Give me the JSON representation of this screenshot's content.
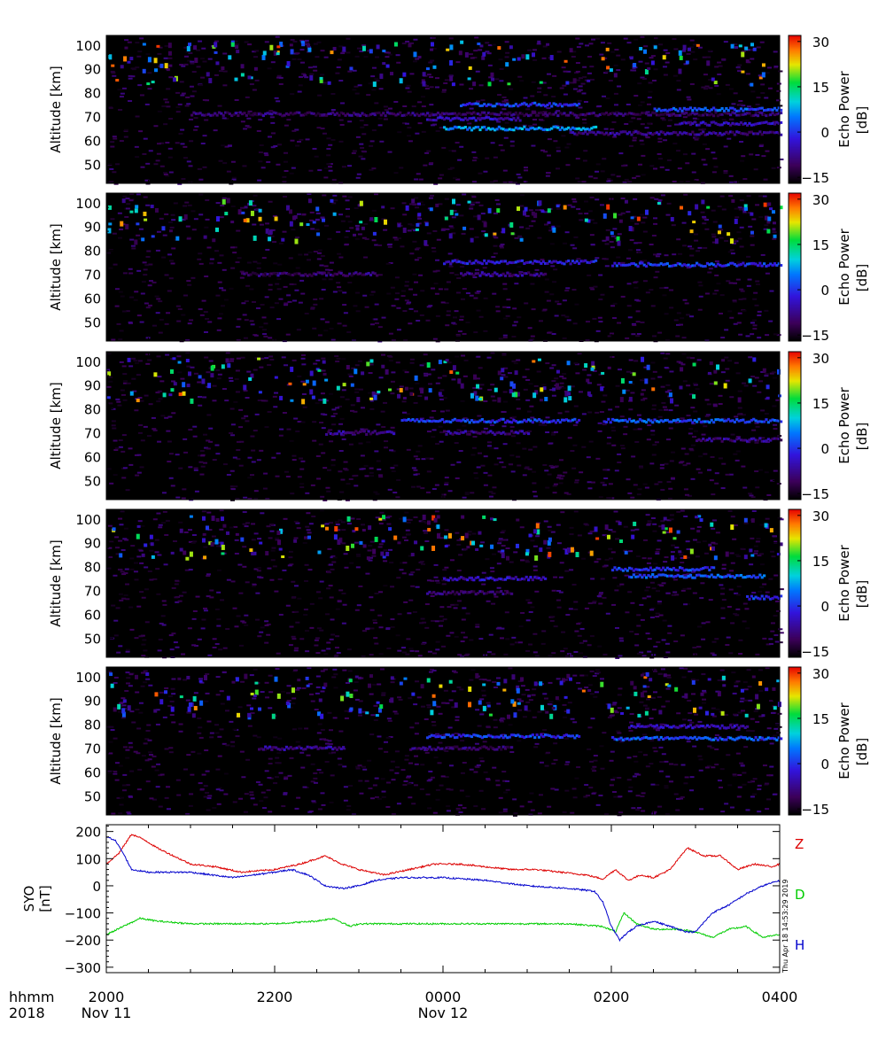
{
  "figure": {
    "x_label_line1": "hhmm",
    "x_label_line2": "2018",
    "stamp": "Thu Apr 18 14:53:29 2019"
  },
  "time_axis": {
    "range_hours": [
      20,
      28
    ],
    "ticks": [
      {
        "t": 20,
        "time": "2000",
        "date": "Nov 11"
      },
      {
        "t": 22,
        "time": "2200",
        "date": ""
      },
      {
        "t": 24,
        "time": "0000",
        "date": "Nov 12"
      },
      {
        "t": 26,
        "time": "0200",
        "date": ""
      },
      {
        "t": 28,
        "time": "0400",
        "date": ""
      }
    ],
    "minor_step_hours": 0.5
  },
  "chart_data": [
    {
      "type": "heatmap",
      "panel": 1,
      "ylabel": "Altitude [km]",
      "ylim": [
        42,
        104
      ],
      "yticks": [
        50,
        60,
        70,
        80,
        90,
        100
      ],
      "colorbar": {
        "label_line1": "Echo Power",
        "label_line2": "[dB]",
        "range": [
          -17,
          32
        ],
        "ticks": [
          -15,
          0,
          15,
          30
        ]
      },
      "echo_layers": [
        {
          "t": [
            21.0,
            28.0
          ],
          "alt": 71,
          "db": -10
        },
        {
          "t": [
            23.8,
            24.9
          ],
          "alt": 69,
          "db": -5
        },
        {
          "t": [
            24.0,
            25.8
          ],
          "alt": 65,
          "db": 6
        },
        {
          "t": [
            24.2,
            25.6
          ],
          "alt": 75,
          "db": 0
        },
        {
          "t": [
            26.5,
            28.0
          ],
          "alt": 73,
          "db": 2
        },
        {
          "t": [
            26.8,
            28.0
          ],
          "alt": 67,
          "db": -5
        },
        {
          "t": [
            25.5,
            28.0
          ],
          "alt": 63,
          "db": -8
        }
      ]
    },
    {
      "type": "heatmap",
      "panel": 2,
      "ylabel": "Altitude [km]",
      "ylim": [
        42,
        104
      ],
      "yticks": [
        50,
        60,
        70,
        80,
        90,
        100
      ],
      "colorbar": {
        "label_line1": "Echo Power",
        "label_line2": "[dB]",
        "range": [
          -17,
          32
        ],
        "ticks": [
          -15,
          0,
          15,
          30
        ]
      },
      "echo_layers": [
        {
          "t": [
            24.0,
            25.8
          ],
          "alt": 75,
          "db": -3
        },
        {
          "t": [
            24.2,
            25.2
          ],
          "alt": 70,
          "db": -8
        },
        {
          "t": [
            26.0,
            28.0
          ],
          "alt": 74,
          "db": 0
        },
        {
          "t": [
            21.6,
            23.2
          ],
          "alt": 70,
          "db": -10
        }
      ]
    },
    {
      "type": "heatmap",
      "panel": 3,
      "ylabel": "Altitude [km]",
      "ylim": [
        42,
        104
      ],
      "yticks": [
        50,
        60,
        70,
        80,
        90,
        100
      ],
      "colorbar": {
        "label_line1": "Echo Power",
        "label_line2": "[dB]",
        "range": [
          -17,
          32
        ],
        "ticks": [
          -15,
          0,
          15,
          30
        ]
      },
      "echo_layers": [
        {
          "t": [
            23.5,
            25.6
          ],
          "alt": 75,
          "db": 0
        },
        {
          "t": [
            22.6,
            23.4
          ],
          "alt": 70,
          "db": -8
        },
        {
          "t": [
            24.0,
            25.0
          ],
          "alt": 70,
          "db": -8
        },
        {
          "t": [
            25.9,
            28.0
          ],
          "alt": 75,
          "db": 2
        },
        {
          "t": [
            27.0,
            28.0
          ],
          "alt": 67,
          "db": -8
        }
      ]
    },
    {
      "type": "heatmap",
      "panel": 4,
      "ylabel": "Altitude [km]",
      "ylim": [
        42,
        104
      ],
      "yticks": [
        50,
        60,
        70,
        80,
        90,
        100
      ],
      "colorbar": {
        "label_line1": "Echo Power",
        "label_line2": "[dB]",
        "range": [
          -17,
          32
        ],
        "ticks": [
          -15,
          0,
          15,
          30
        ]
      },
      "echo_layers": [
        {
          "t": [
            24.0,
            25.2
          ],
          "alt": 75,
          "db": -5
        },
        {
          "t": [
            26.0,
            27.2
          ],
          "alt": 79,
          "db": 0
        },
        {
          "t": [
            26.2,
            27.8
          ],
          "alt": 76,
          "db": 2
        },
        {
          "t": [
            27.6,
            28.0
          ],
          "alt": 67,
          "db": 0
        },
        {
          "t": [
            23.8,
            24.8
          ],
          "alt": 69,
          "db": -10
        }
      ]
    },
    {
      "type": "heatmap",
      "panel": 5,
      "ylabel": "Altitude [km]",
      "ylim": [
        42,
        104
      ],
      "yticks": [
        50,
        60,
        70,
        80,
        90,
        100
      ],
      "colorbar": {
        "label_line1": "Echo Power",
        "label_line2": "[dB]",
        "range": [
          -17,
          32
        ],
        "ticks": [
          -15,
          0,
          15,
          30
        ]
      },
      "echo_layers": [
        {
          "t": [
            23.8,
            25.6
          ],
          "alt": 75,
          "db": 0
        },
        {
          "t": [
            21.8,
            22.8
          ],
          "alt": 70,
          "db": -8
        },
        {
          "t": [
            23.6,
            24.8
          ],
          "alt": 70,
          "db": -10
        },
        {
          "t": [
            26.0,
            28.0
          ],
          "alt": 74,
          "db": 2
        },
        {
          "t": [
            26.2,
            27.6
          ],
          "alt": 79,
          "db": -5
        }
      ]
    },
    {
      "type": "line",
      "panel": 6,
      "ylabel_line1": "SYO",
      "ylabel_line2": "[nT]",
      "ylim": [
        -320,
        225
      ],
      "yticks": [
        -300,
        -200,
        -100,
        0,
        100,
        200
      ],
      "series": [
        {
          "name": "Z",
          "color": "#dd0000",
          "t": [
            20.0,
            20.15,
            20.3,
            20.45,
            20.6,
            20.8,
            21.0,
            21.3,
            21.6,
            22.0,
            22.3,
            22.6,
            22.8,
            23.0,
            23.3,
            23.6,
            23.9,
            24.2,
            24.5,
            24.8,
            25.1,
            25.4,
            25.7,
            25.9,
            26.05,
            26.2,
            26.35,
            26.5,
            26.7,
            26.9,
            27.1,
            27.3,
            27.5,
            27.7,
            27.9,
            28.0
          ],
          "v": [
            80,
            120,
            190,
            170,
            140,
            110,
            80,
            70,
            50,
            60,
            80,
            110,
            80,
            60,
            40,
            60,
            80,
            80,
            70,
            60,
            60,
            50,
            40,
            25,
            60,
            20,
            40,
            30,
            60,
            140,
            110,
            110,
            60,
            80,
            70,
            80
          ]
        },
        {
          "name": "D",
          "color": "#00cc00",
          "t": [
            20.0,
            20.2,
            20.4,
            20.6,
            21.0,
            21.5,
            22.0,
            22.5,
            22.7,
            22.9,
            23.0,
            23.5,
            24.0,
            24.5,
            25.0,
            25.5,
            25.9,
            26.05,
            26.15,
            26.3,
            26.5,
            26.8,
            27.0,
            27.2,
            27.4,
            27.6,
            27.8,
            28.0
          ],
          "v": [
            -180,
            -150,
            -120,
            -130,
            -140,
            -140,
            -140,
            -130,
            -120,
            -150,
            -140,
            -140,
            -140,
            -140,
            -140,
            -140,
            -150,
            -170,
            -100,
            -140,
            -160,
            -160,
            -170,
            -190,
            -160,
            -150,
            -190,
            -180
          ]
        },
        {
          "name": "H",
          "color": "#0000cc",
          "t": [
            20.0,
            20.1,
            20.2,
            20.3,
            20.5,
            21.0,
            21.5,
            22.0,
            22.2,
            22.4,
            22.6,
            22.8,
            23.0,
            23.2,
            23.5,
            24.0,
            24.5,
            25.0,
            25.5,
            25.8,
            25.9,
            26.0,
            26.1,
            26.2,
            26.3,
            26.5,
            26.7,
            26.9,
            27.0,
            27.2,
            27.4,
            27.6,
            27.8,
            28.0
          ],
          "v": [
            180,
            170,
            120,
            60,
            50,
            50,
            30,
            50,
            60,
            40,
            0,
            -10,
            0,
            20,
            30,
            30,
            20,
            0,
            -10,
            -20,
            -60,
            -150,
            -200,
            -170,
            -150,
            -130,
            -150,
            -170,
            -170,
            -100,
            -70,
            -30,
            0,
            20
          ]
        }
      ]
    }
  ]
}
